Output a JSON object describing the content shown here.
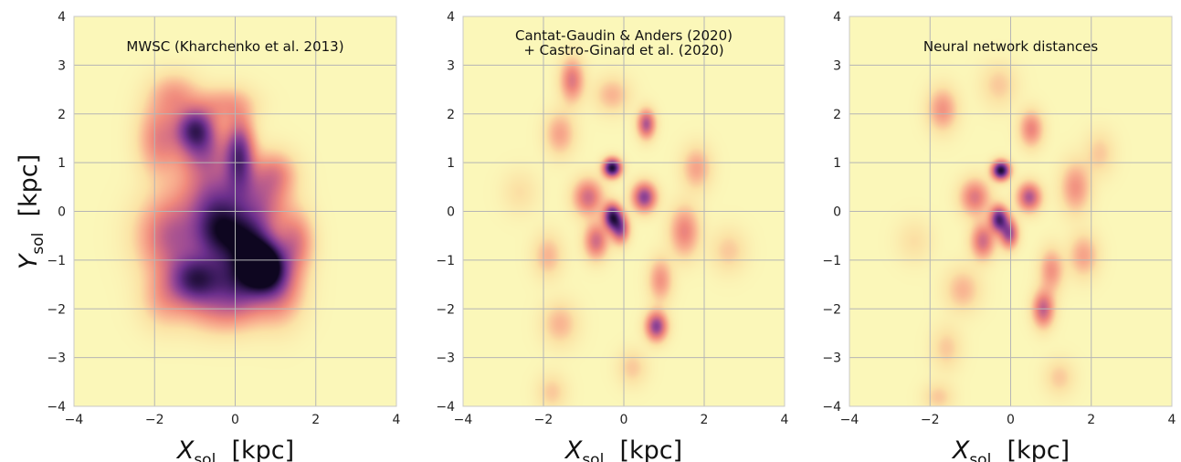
{
  "figure": {
    "xlabel": {
      "var": "X",
      "sub": "sol",
      "unit": "[kpc]"
    },
    "ylabel": {
      "var": "Y",
      "sub": "sol",
      "unit": "[kpc]"
    }
  },
  "colors": {
    "background": "#fbf7b9",
    "grid": "#b5b5b5",
    "frame": "#c8c8c8",
    "colormap": [
      "#fbf7b9",
      "#fbe3a6",
      "#f9b391",
      "#f08a7d",
      "#cf6a86",
      "#9b4a95",
      "#6b2f8c",
      "#3a1a5c",
      "#0e0620"
    ]
  },
  "chart_data": [
    {
      "type": "heatmap",
      "title_lines": [
        "MWSC (Kharchenko et al. 2013)"
      ],
      "xlim": [
        -4,
        4
      ],
      "ylim": [
        -4,
        4
      ],
      "xticks": [
        "−4",
        "−2",
        "0",
        "2",
        "4"
      ],
      "yticks": [
        "4",
        "3",
        "2",
        "1",
        "0",
        "−1",
        "−2",
        "−3",
        "−4"
      ],
      "grid": true,
      "density_peaks": [
        {
          "x": -1.9,
          "y": 1.5,
          "sx": 0.35,
          "sy": 0.5,
          "w": 0.35
        },
        {
          "x": -1.0,
          "y": 1.7,
          "sx": 0.35,
          "sy": 0.3,
          "w": 0.75
        },
        {
          "x": -0.8,
          "y": 1.2,
          "sx": 0.45,
          "sy": 0.35,
          "w": 0.4
        },
        {
          "x": 0.1,
          "y": 1.2,
          "sx": 0.25,
          "sy": 0.5,
          "w": 0.7
        },
        {
          "x": -0.5,
          "y": 0.4,
          "sx": 0.6,
          "sy": 0.45,
          "w": 0.45
        },
        {
          "x": 0.7,
          "y": 0.2,
          "sx": 0.45,
          "sy": 0.5,
          "w": 0.4
        },
        {
          "x": -1.6,
          "y": -0.5,
          "sx": 0.55,
          "sy": 0.55,
          "w": 0.5
        },
        {
          "x": -0.4,
          "y": -0.4,
          "sx": 0.45,
          "sy": 0.45,
          "w": 0.8
        },
        {
          "x": 0.3,
          "y": -0.6,
          "sx": 0.4,
          "sy": 0.4,
          "w": 0.6
        },
        {
          "x": 0.7,
          "y": -1.1,
          "sx": 0.35,
          "sy": 0.35,
          "w": 1.0
        },
        {
          "x": -1.0,
          "y": -1.4,
          "sx": 0.45,
          "sy": 0.35,
          "w": 0.75
        },
        {
          "x": 0.1,
          "y": -1.4,
          "sx": 0.5,
          "sy": 0.4,
          "w": 0.65
        },
        {
          "x": 1.1,
          "y": -1.5,
          "sx": 0.4,
          "sy": 0.5,
          "w": 0.4
        },
        {
          "x": -0.3,
          "y": -2.0,
          "sx": 0.7,
          "sy": 0.35,
          "w": 0.3
        },
        {
          "x": -1.8,
          "y": -1.8,
          "sx": 0.4,
          "sy": 0.4,
          "w": 0.2
        },
        {
          "x": -1.5,
          "y": 2.4,
          "sx": 0.4,
          "sy": 0.3,
          "w": 0.25
        },
        {
          "x": 1.5,
          "y": -0.6,
          "sx": 0.3,
          "sy": 0.4,
          "w": 0.35
        },
        {
          "x": 1.0,
          "y": 0.8,
          "sx": 0.35,
          "sy": 0.3,
          "w": 0.25
        },
        {
          "x": -0.3,
          "y": 2.2,
          "sx": 0.5,
          "sy": 0.25,
          "w": 0.25
        }
      ]
    },
    {
      "type": "heatmap",
      "title_lines": [
        "Cantat-Gaudin & Anders (2020)",
        "+ Castro-Ginard et al. (2020)"
      ],
      "xlim": [
        -4,
        4
      ],
      "ylim": [
        -4,
        4
      ],
      "xticks": [
        "−4",
        "−2",
        "0",
        "2",
        "4"
      ],
      "yticks": [
        "4",
        "3",
        "2",
        "1",
        "0",
        "−1",
        "−2",
        "−3",
        "−4"
      ],
      "grid": true,
      "density_peaks": [
        {
          "x": -0.3,
          "y": 0.9,
          "sx": 0.15,
          "sy": 0.13,
          "w": 1.0
        },
        {
          "x": -0.3,
          "y": -0.1,
          "sx": 0.15,
          "sy": 0.18,
          "w": 0.85
        },
        {
          "x": -0.1,
          "y": -0.35,
          "sx": 0.15,
          "sy": 0.2,
          "w": 0.6
        },
        {
          "x": 0.5,
          "y": 0.3,
          "sx": 0.2,
          "sy": 0.2,
          "w": 0.65
        },
        {
          "x": 0.55,
          "y": 1.8,
          "sx": 0.15,
          "sy": 0.2,
          "w": 0.55
        },
        {
          "x": -0.9,
          "y": 0.3,
          "sx": 0.25,
          "sy": 0.25,
          "w": 0.45
        },
        {
          "x": -0.7,
          "y": -0.6,
          "sx": 0.2,
          "sy": 0.25,
          "w": 0.45
        },
        {
          "x": 0.8,
          "y": -2.35,
          "sx": 0.18,
          "sy": 0.2,
          "w": 0.65
        },
        {
          "x": 1.5,
          "y": -0.4,
          "sx": 0.25,
          "sy": 0.35,
          "w": 0.35
        },
        {
          "x": -1.3,
          "y": 2.7,
          "sx": 0.2,
          "sy": 0.3,
          "w": 0.4
        },
        {
          "x": -1.6,
          "y": 1.6,
          "sx": 0.25,
          "sy": 0.3,
          "w": 0.25
        },
        {
          "x": -1.9,
          "y": -0.9,
          "sx": 0.25,
          "sy": 0.3,
          "w": 0.2
        },
        {
          "x": 1.8,
          "y": 0.9,
          "sx": 0.25,
          "sy": 0.3,
          "w": 0.25
        },
        {
          "x": -1.6,
          "y": -2.3,
          "sx": 0.3,
          "sy": 0.3,
          "w": 0.2
        },
        {
          "x": 0.9,
          "y": -1.4,
          "sx": 0.2,
          "sy": 0.3,
          "w": 0.3
        },
        {
          "x": -1.8,
          "y": -3.7,
          "sx": 0.25,
          "sy": 0.25,
          "w": 0.15
        },
        {
          "x": 2.6,
          "y": -0.8,
          "sx": 0.3,
          "sy": 0.3,
          "w": 0.15
        },
        {
          "x": -2.6,
          "y": 0.4,
          "sx": 0.3,
          "sy": 0.3,
          "w": 0.1
        },
        {
          "x": 0.2,
          "y": -3.2,
          "sx": 0.25,
          "sy": 0.25,
          "w": 0.15
        },
        {
          "x": -0.3,
          "y": 2.4,
          "sx": 0.3,
          "sy": 0.25,
          "w": 0.2
        }
      ]
    },
    {
      "type": "heatmap",
      "title_lines": [
        "Neural network distances"
      ],
      "xlim": [
        -4,
        4
      ],
      "ylim": [
        -4,
        4
      ],
      "xticks": [
        "−4",
        "−2",
        "0",
        "2",
        "4"
      ],
      "yticks": [
        "4",
        "3",
        "2",
        "1",
        "0",
        "−1",
        "−2",
        "−3",
        "−4"
      ],
      "grid": true,
      "density_peaks": [
        {
          "x": -0.25,
          "y": 0.85,
          "sx": 0.15,
          "sy": 0.13,
          "w": 1.0
        },
        {
          "x": -0.3,
          "y": -0.15,
          "sx": 0.15,
          "sy": 0.18,
          "w": 0.8
        },
        {
          "x": -0.05,
          "y": -0.45,
          "sx": 0.15,
          "sy": 0.2,
          "w": 0.6
        },
        {
          "x": 0.45,
          "y": 0.3,
          "sx": 0.2,
          "sy": 0.2,
          "w": 0.55
        },
        {
          "x": -0.9,
          "y": 0.3,
          "sx": 0.25,
          "sy": 0.25,
          "w": 0.4
        },
        {
          "x": -0.7,
          "y": -0.6,
          "sx": 0.2,
          "sy": 0.25,
          "w": 0.45
        },
        {
          "x": 0.8,
          "y": -2.0,
          "sx": 0.18,
          "sy": 0.25,
          "w": 0.5
        },
        {
          "x": 0.5,
          "y": 1.7,
          "sx": 0.2,
          "sy": 0.25,
          "w": 0.35
        },
        {
          "x": -1.7,
          "y": 2.1,
          "sx": 0.25,
          "sy": 0.3,
          "w": 0.3
        },
        {
          "x": 1.6,
          "y": 0.5,
          "sx": 0.25,
          "sy": 0.35,
          "w": 0.3
        },
        {
          "x": 1.8,
          "y": -0.9,
          "sx": 0.25,
          "sy": 0.3,
          "w": 0.25
        },
        {
          "x": -1.2,
          "y": -1.6,
          "sx": 0.3,
          "sy": 0.3,
          "w": 0.2
        },
        {
          "x": 1.0,
          "y": -1.2,
          "sx": 0.2,
          "sy": 0.3,
          "w": 0.3
        },
        {
          "x": -1.6,
          "y": -2.8,
          "sx": 0.25,
          "sy": 0.3,
          "w": 0.15
        },
        {
          "x": 1.2,
          "y": -3.4,
          "sx": 0.25,
          "sy": 0.25,
          "w": 0.15
        },
        {
          "x": -1.8,
          "y": -3.8,
          "sx": 0.25,
          "sy": 0.2,
          "w": 0.15
        },
        {
          "x": -2.4,
          "y": -0.6,
          "sx": 0.3,
          "sy": 0.3,
          "w": 0.1
        },
        {
          "x": 2.2,
          "y": 1.2,
          "sx": 0.25,
          "sy": 0.3,
          "w": 0.15
        },
        {
          "x": -0.3,
          "y": 2.6,
          "sx": 0.3,
          "sy": 0.3,
          "w": 0.15
        }
      ]
    }
  ]
}
